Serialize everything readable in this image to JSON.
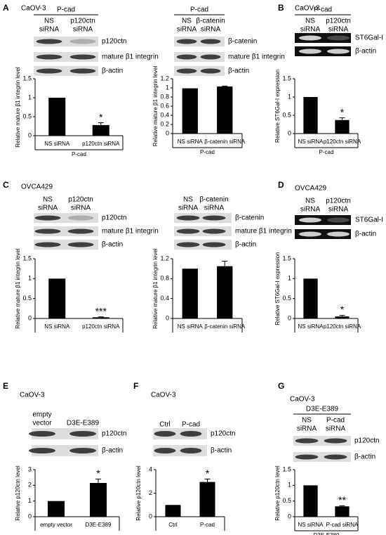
{
  "panels": [
    {
      "letter": "A",
      "cell_line": "CaOV-3",
      "blot_sets": [
        {
          "header": "P-cad",
          "lanes": [
            [
              "NS",
              "siRNA"
            ],
            [
              "p120ctn",
              "siRNA"
            ]
          ],
          "rows": [
            "p120ctn",
            "mature β1 integrin",
            "β-actin"
          ]
        },
        {
          "header": "P-cad",
          "lanes": [
            [
              "NS",
              "siRNA"
            ],
            [
              "β-catenin",
              "siRNA"
            ]
          ],
          "rows": [
            "β-catenin",
            "mature β1 integrin",
            "β-actin"
          ]
        }
      ]
    },
    {
      "letter": "B",
      "cell_line": "CaOV-3",
      "blot_sets": [
        {
          "header": "P-cad",
          "lanes": [
            [
              "NS",
              "siRNA"
            ],
            [
              "p120ctn",
              "siRNA"
            ]
          ],
          "rows": [
            "ST6Gal-I",
            "β-actin"
          ]
        }
      ]
    },
    {
      "letter": "C",
      "cell_line": "OVCA429",
      "blot_sets": [
        {
          "lanes": [
            [
              "NS",
              "siRNA"
            ],
            [
              "p120ctn",
              "siRNA"
            ]
          ],
          "rows": [
            "p120ctn",
            "mature β1 integrin",
            "β-actin"
          ]
        },
        {
          "lanes": [
            [
              "NS",
              "siRNA"
            ],
            [
              "β-catenin",
              "siRNA"
            ]
          ],
          "rows": [
            "β-catenin",
            "mature β1 integrin",
            "β-actin"
          ]
        }
      ]
    },
    {
      "letter": "D",
      "cell_line": "OVCA429",
      "blot_sets": [
        {
          "lanes": [
            [
              "NS",
              "siRNA"
            ],
            [
              "p120ctn",
              "siRNA"
            ]
          ],
          "rows": [
            "ST6Gal-I",
            "β-actin"
          ]
        }
      ]
    },
    {
      "letter": "E",
      "cell_line": "CaOV-3",
      "blot_sets": [
        {
          "lanes": [
            [
              "empty",
              "vector"
            ],
            [
              "D3E-E389"
            ]
          ],
          "rows": [
            "p120ctn",
            "β-actin"
          ]
        }
      ]
    },
    {
      "letter": "F",
      "cell_line": "CaOV-3",
      "blot_sets": [
        {
          "lanes": [
            [
              "Ctrl"
            ],
            [
              "P-cad"
            ]
          ],
          "rows": [
            "p120ctn",
            "β-actin"
          ]
        }
      ]
    },
    {
      "letter": "G",
      "cell_line": "CaOV-3",
      "blot_sets": [
        {
          "header": "D3E-E389",
          "lanes": [
            [
              "NS",
              "siRNA"
            ],
            [
              "P-cad",
              "siRNA"
            ]
          ],
          "rows": [
            "p120ctn",
            "β-actin"
          ]
        }
      ]
    }
  ],
  "chart_data": [
    {
      "type": "bar",
      "ylabel": "Relative mature β1 integrin level",
      "categories": [
        "NS siRNA",
        "p120ctn siRNA"
      ],
      "values": [
        1,
        0.28
      ],
      "errors": [
        null,
        0.06
      ],
      "annotations": [
        null,
        "*"
      ],
      "group": "P-cad",
      "ylim": [
        0,
        1.5
      ],
      "yticks": [
        0,
        0.5,
        1,
        1.5
      ],
      "color": "#000000"
    },
    {
      "type": "bar",
      "ylabel": "Relative mature β1 integrin level",
      "categories": [
        "NS siRNA",
        "β-catenin siRNA"
      ],
      "values": [
        0.99,
        1.03
      ],
      "errors": [
        null,
        0.01
      ],
      "annotations": [
        null,
        null
      ],
      "group": "P-cad",
      "ylim": [
        0,
        1.2
      ],
      "yticks": [
        0,
        0.2,
        0.4,
        0.6,
        0.8,
        1,
        1.2
      ],
      "color": "#000000"
    },
    {
      "type": "bar",
      "ylabel": "Relative ST6Gal-I expression",
      "categories": [
        "NS siRNA",
        "p120ctn siRNA"
      ],
      "values": [
        1,
        0.37
      ],
      "errors": [
        null,
        0.06
      ],
      "annotations": [
        null,
        "*"
      ],
      "group": "P-cad",
      "ylim": [
        0,
        1.5
      ],
      "yticks": [
        0,
        0.5,
        1,
        1.5
      ],
      "color": "#000000"
    },
    {
      "type": "bar",
      "ylabel": "Relative mature β1 integrin level",
      "categories": [
        "NS siRNA",
        "p120ctn siRNA"
      ],
      "values": [
        1,
        0.03
      ],
      "errors": [
        null,
        0.01
      ],
      "annotations": [
        null,
        "***"
      ],
      "ylim": [
        0,
        1.5
      ],
      "yticks": [
        0,
        0.5,
        1,
        1.5
      ],
      "color": "#000000"
    },
    {
      "type": "bar",
      "ylabel": "Relative mature β1 integrin level",
      "categories": [
        "NS siRNA",
        "β-catenin siRNA"
      ],
      "values": [
        1,
        1.05
      ],
      "errors": [
        null,
        0.1
      ],
      "annotations": [
        null,
        null
      ],
      "ylim": [
        0,
        1.2
      ],
      "yticks": [
        0,
        0.4,
        0.8,
        1.2
      ],
      "color": "#000000"
    },
    {
      "type": "bar",
      "ylabel": "Relative ST6Gal-I expression",
      "categories": [
        "NS siRNA",
        "p120ctn siRNA"
      ],
      "values": [
        1,
        0.05
      ],
      "errors": [
        null,
        0.03
      ],
      "annotations": [
        null,
        "*"
      ],
      "ylim": [
        0,
        1.5
      ],
      "yticks": [
        0,
        0.5,
        1,
        1.5
      ],
      "color": "#000000"
    },
    {
      "type": "bar",
      "ylabel": "Relative p120ctn level",
      "categories": [
        "empty vector",
        "D3E-E389"
      ],
      "values": [
        1,
        2.15
      ],
      "errors": [
        null,
        0.25
      ],
      "annotations": [
        null,
        "*"
      ],
      "ylim": [
        0,
        3
      ],
      "yticks": [
        0,
        1,
        2,
        3
      ],
      "color": "#000000"
    },
    {
      "type": "bar",
      "ylabel": "Relative p120ctn level",
      "categories": [
        "Ctrl",
        "P-cad"
      ],
      "values": [
        1,
        2.95
      ],
      "errors": [
        null,
        0.25
      ],
      "annotations": [
        null,
        "*"
      ],
      "ylim": [
        0,
        4
      ],
      "yticks": [
        0,
        2,
        4
      ],
      "color": "#000000"
    },
    {
      "type": "bar",
      "ylabel": "Relative p120ctn level",
      "categories": [
        "NS siRNA",
        "P-cad siRNA"
      ],
      "values": [
        1,
        0.33
      ],
      "errors": [
        null,
        0.02
      ],
      "annotations": [
        null,
        "**"
      ],
      "group": "D3E-E389",
      "ylim": [
        0,
        1.5
      ],
      "yticks": [
        0,
        0.5,
        1,
        1.5
      ],
      "color": "#000000"
    }
  ]
}
